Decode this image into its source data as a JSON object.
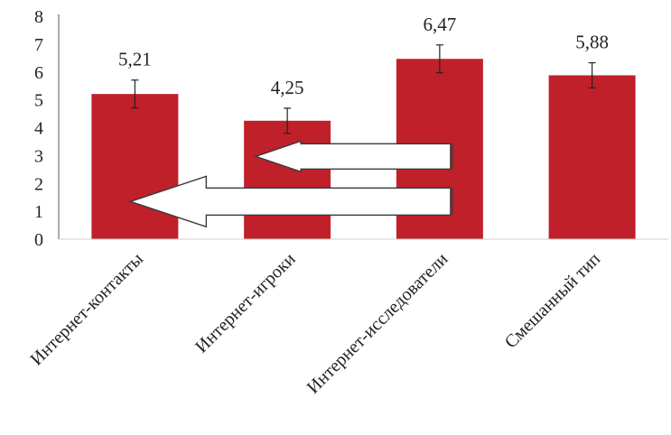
{
  "chart_data": {
    "type": "bar",
    "categories": [
      "Интернет-контакты",
      "Интернет-игроки",
      "Интернет-исследователи",
      "Смешанный тип"
    ],
    "values": [
      5.21,
      4.25,
      6.47,
      5.88
    ],
    "data_labels": [
      "5,21",
      "4,25",
      "6,47",
      "5,88"
    ],
    "error_bars": [
      0.5,
      0.45,
      0.5,
      0.45
    ],
    "ylim": [
      0,
      8
    ],
    "yticks": [
      "0",
      "1",
      "2",
      "3",
      "4",
      "5",
      "6",
      "7",
      "8"
    ],
    "title": "",
    "xlabel": "",
    "ylabel": "",
    "grid": false,
    "bar_color": "#c0202a",
    "annotations": [
      {
        "type": "arrow",
        "direction": "left",
        "y_from": 2.97,
        "x_from_category": 2,
        "x_to_category": 1
      },
      {
        "type": "arrow",
        "direction": "left",
        "y_from": 1.35,
        "x_from_category": 2,
        "x_to_category": 0
      }
    ]
  }
}
